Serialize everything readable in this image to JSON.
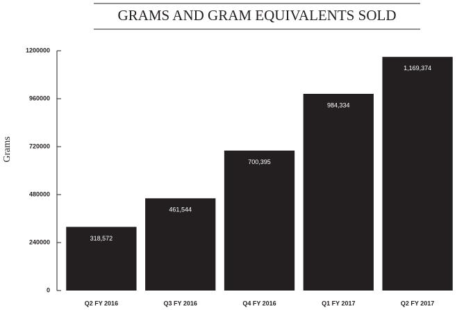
{
  "chart_data": {
    "type": "bar",
    "title": "GRAMS AND GRAM EQUIVALENTS SOLD",
    "y_label": "Grams",
    "categories": [
      "Q2 FY 2016",
      "Q3 FY 2016",
      "Q4 FY 2016",
      "Q1 FY 2017",
      "Q2 FY 2017"
    ],
    "values": [
      318572,
      461544,
      700395,
      984334,
      1169374
    ],
    "value_labels": [
      "318,572",
      "461,544",
      "700,395",
      "984,334",
      "1,169,374"
    ],
    "color": "#231f20",
    "ylim": [
      0,
      1200000
    ],
    "yticks": [
      0,
      240000,
      480000,
      720000,
      960000,
      1200000
    ]
  }
}
